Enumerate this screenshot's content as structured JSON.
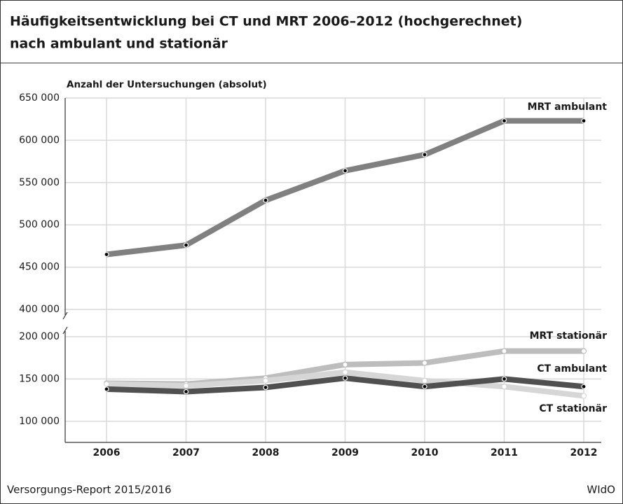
{
  "chart_data": {
    "type": "line",
    "title": [
      "Häufigkeitsentwicklung bei CT und MRT 2006–2012 (hochgerechnet)",
      "nach ambulant und stationär"
    ],
    "y_label": "Anzahl der Untersuchungen (absolut)",
    "source": "Versorgungs-Report 2015/2016",
    "publisher": "WIdO",
    "categories": [
      "2006",
      "2007",
      "2008",
      "2009",
      "2010",
      "2011",
      "2012"
    ],
    "series": [
      {
        "name": "MRT ambulant",
        "color": "#808080",
        "values": [
          465000,
          476000,
          529000,
          564000,
          583000,
          623000,
          623000
        ]
      },
      {
        "name": "MRT stationär",
        "color": "#bdbdbd",
        "values": [
          145000,
          144000,
          151000,
          167000,
          169000,
          183000,
          183000
        ]
      },
      {
        "name": "CT ambulant",
        "color": "#d6d6d6",
        "values": [
          144000,
          142000,
          148000,
          158000,
          148000,
          141000,
          130000
        ]
      },
      {
        "name": "CT stationär",
        "color": "#505050",
        "values": [
          138000,
          135000,
          140000,
          151000,
          141000,
          150000,
          141000
        ]
      }
    ],
    "ylim": [
      75000,
      650000
    ],
    "axis_break": [
      200000,
      400000
    ],
    "yticks": [
      {
        "value": 100000,
        "label": "100 000"
      },
      {
        "value": 150000,
        "label": "150 000"
      },
      {
        "value": 200000,
        "label": "200 000"
      },
      {
        "value": 400000,
        "label": "400 000"
      },
      {
        "value": 450000,
        "label": "450 000"
      },
      {
        "value": 500000,
        "label": "500 000"
      },
      {
        "value": 550000,
        "label": "550 000"
      },
      {
        "value": 600000,
        "label": "600 000"
      },
      {
        "value": 650000,
        "label": "650 000"
      }
    ],
    "grid": true
  }
}
